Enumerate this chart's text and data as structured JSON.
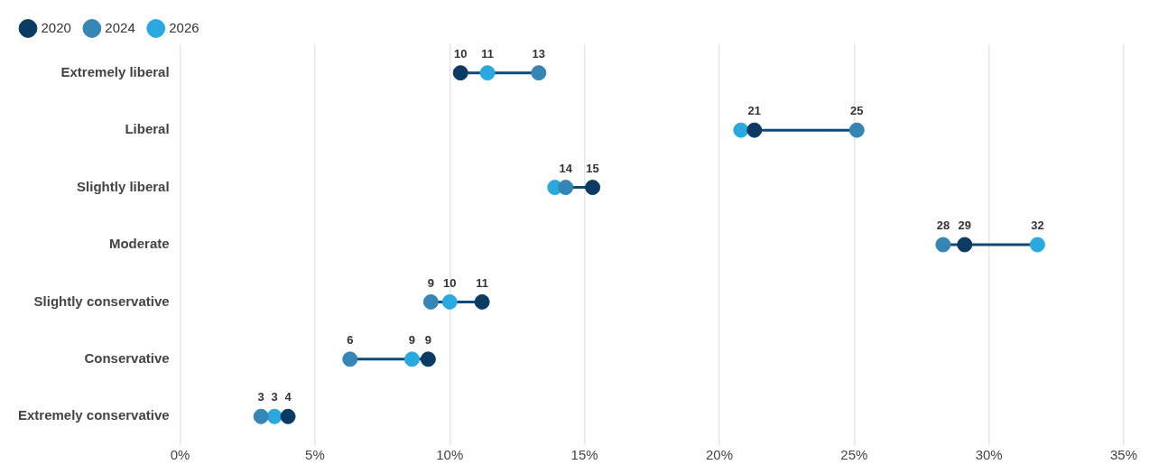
{
  "chart_data": {
    "type": "scatter",
    "orientation": "horizontal",
    "categories": [
      "Extremely liberal",
      "Liberal",
      "Slightly liberal",
      "Moderate",
      "Slightly conservative",
      "Conservative",
      "Extremely conservative"
    ],
    "series": [
      {
        "name": "2020",
        "color": "#0b3a63",
        "values": [
          10.4,
          21.3,
          15.3,
          29.1,
          11.2,
          9.2,
          4.0
        ],
        "value_labels": [
          "10",
          "21",
          "15",
          "29",
          "11",
          "9",
          "4"
        ]
      },
      {
        "name": "2024",
        "color": "#3585b5",
        "values": [
          13.3,
          25.1,
          14.3,
          28.3,
          9.3,
          6.3,
          3.0
        ],
        "value_labels": [
          "13",
          "25",
          "14",
          "28",
          "9",
          "6",
          "3"
        ]
      },
      {
        "name": "2026",
        "color": "#29a9e0",
        "values": [
          11.4,
          20.8,
          13.9,
          31.8,
          10.0,
          8.6,
          3.5
        ],
        "value_labels": [
          "11",
          null,
          null,
          "32",
          "10",
          "9",
          "3"
        ]
      }
    ],
    "xlim": [
      0,
      35
    ],
    "xticks": [
      {
        "value": 0,
        "label": "0%"
      },
      {
        "value": 5,
        "label": "5%"
      },
      {
        "value": 10,
        "label": "10%"
      },
      {
        "value": 15,
        "label": "15%"
      },
      {
        "value": 20,
        "label": "20%"
      },
      {
        "value": 25,
        "label": "25%"
      },
      {
        "value": 30,
        "label": "30%"
      },
      {
        "value": 35,
        "label": "35%"
      }
    ],
    "grid": "x",
    "legend": "top left",
    "marker": "circle"
  }
}
